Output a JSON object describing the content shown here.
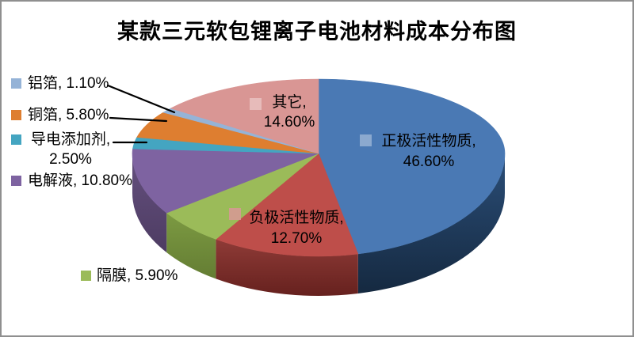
{
  "chart_data": {
    "type": "pie",
    "title": "某款三元软包锂离子电池材料成本分布图",
    "effect": "3d-perspective",
    "start_angle_deg": 0,
    "direction": "clockwise",
    "legend_position": "none",
    "background_color": "#ffffff",
    "border_color": "#8f8f8f",
    "label_text_color": "#000000",
    "leader_line_color": "#000000",
    "slices": [
      {
        "id": "cathode-active-material",
        "label": "正极活性物质",
        "value": 46.6,
        "pct_label": "46.60%",
        "display_lines": [
          "正极活性物质,",
          "46.60%"
        ],
        "color": "#4A79B4",
        "side_colors": [
          "#2B4E78",
          "#152940"
        ],
        "label_placement": "inside"
      },
      {
        "id": "anode-active-material",
        "label": "负极活性物质",
        "value": 12.7,
        "pct_label": "12.70%",
        "display_lines": [
          "负极活性物质,",
          "12.70%"
        ],
        "color": "#BE4E4A",
        "side_colors": [
          "#8F3B37",
          "#66211E"
        ],
        "label_placement": "inside"
      },
      {
        "id": "separator",
        "label": "隔膜",
        "value": 5.9,
        "pct_label": "5.90%",
        "display_lines": [
          "隔膜, 5.90%"
        ],
        "color": "#9BBB59",
        "side_colors": [
          "#7C9A42",
          "#647D33"
        ],
        "label_placement": "outside"
      },
      {
        "id": "electrolyte",
        "label": "电解液",
        "value": 10.8,
        "pct_label": "10.80%",
        "display_lines": [
          "电解液, 10.80%"
        ],
        "color": "#7E63A1",
        "side_colors": [
          "#65507F",
          "#4D3C62"
        ],
        "label_placement": "outside"
      },
      {
        "id": "conductive-additive",
        "label": "导电添加剂",
        "value": 2.5,
        "pct_label": "2.50%",
        "display_lines": [
          "导电添加剂,",
          "2.50%"
        ],
        "color": "#44A5C1",
        "side_colors": null,
        "label_placement": "outside"
      },
      {
        "id": "copper-foil",
        "label": "铜箔",
        "value": 5.8,
        "pct_label": "5.80%",
        "display_lines": [
          "铜箔, 5.80%"
        ],
        "color": "#DE7E30",
        "side_colors": null,
        "label_placement": "outside"
      },
      {
        "id": "aluminum-foil",
        "label": "铝箔",
        "value": 1.1,
        "pct_label": "1.10%",
        "display_lines": [
          "铝箔, 1.10%"
        ],
        "color": "#95B3D7",
        "side_colors": null,
        "label_placement": "outside"
      },
      {
        "id": "others",
        "label": "其它",
        "value": 14.6,
        "pct_label": "14.60%",
        "display_lines": [
          "其它,",
          "14.60%"
        ],
        "color": "#D99694",
        "side_colors": null,
        "label_placement": "inside"
      }
    ]
  }
}
